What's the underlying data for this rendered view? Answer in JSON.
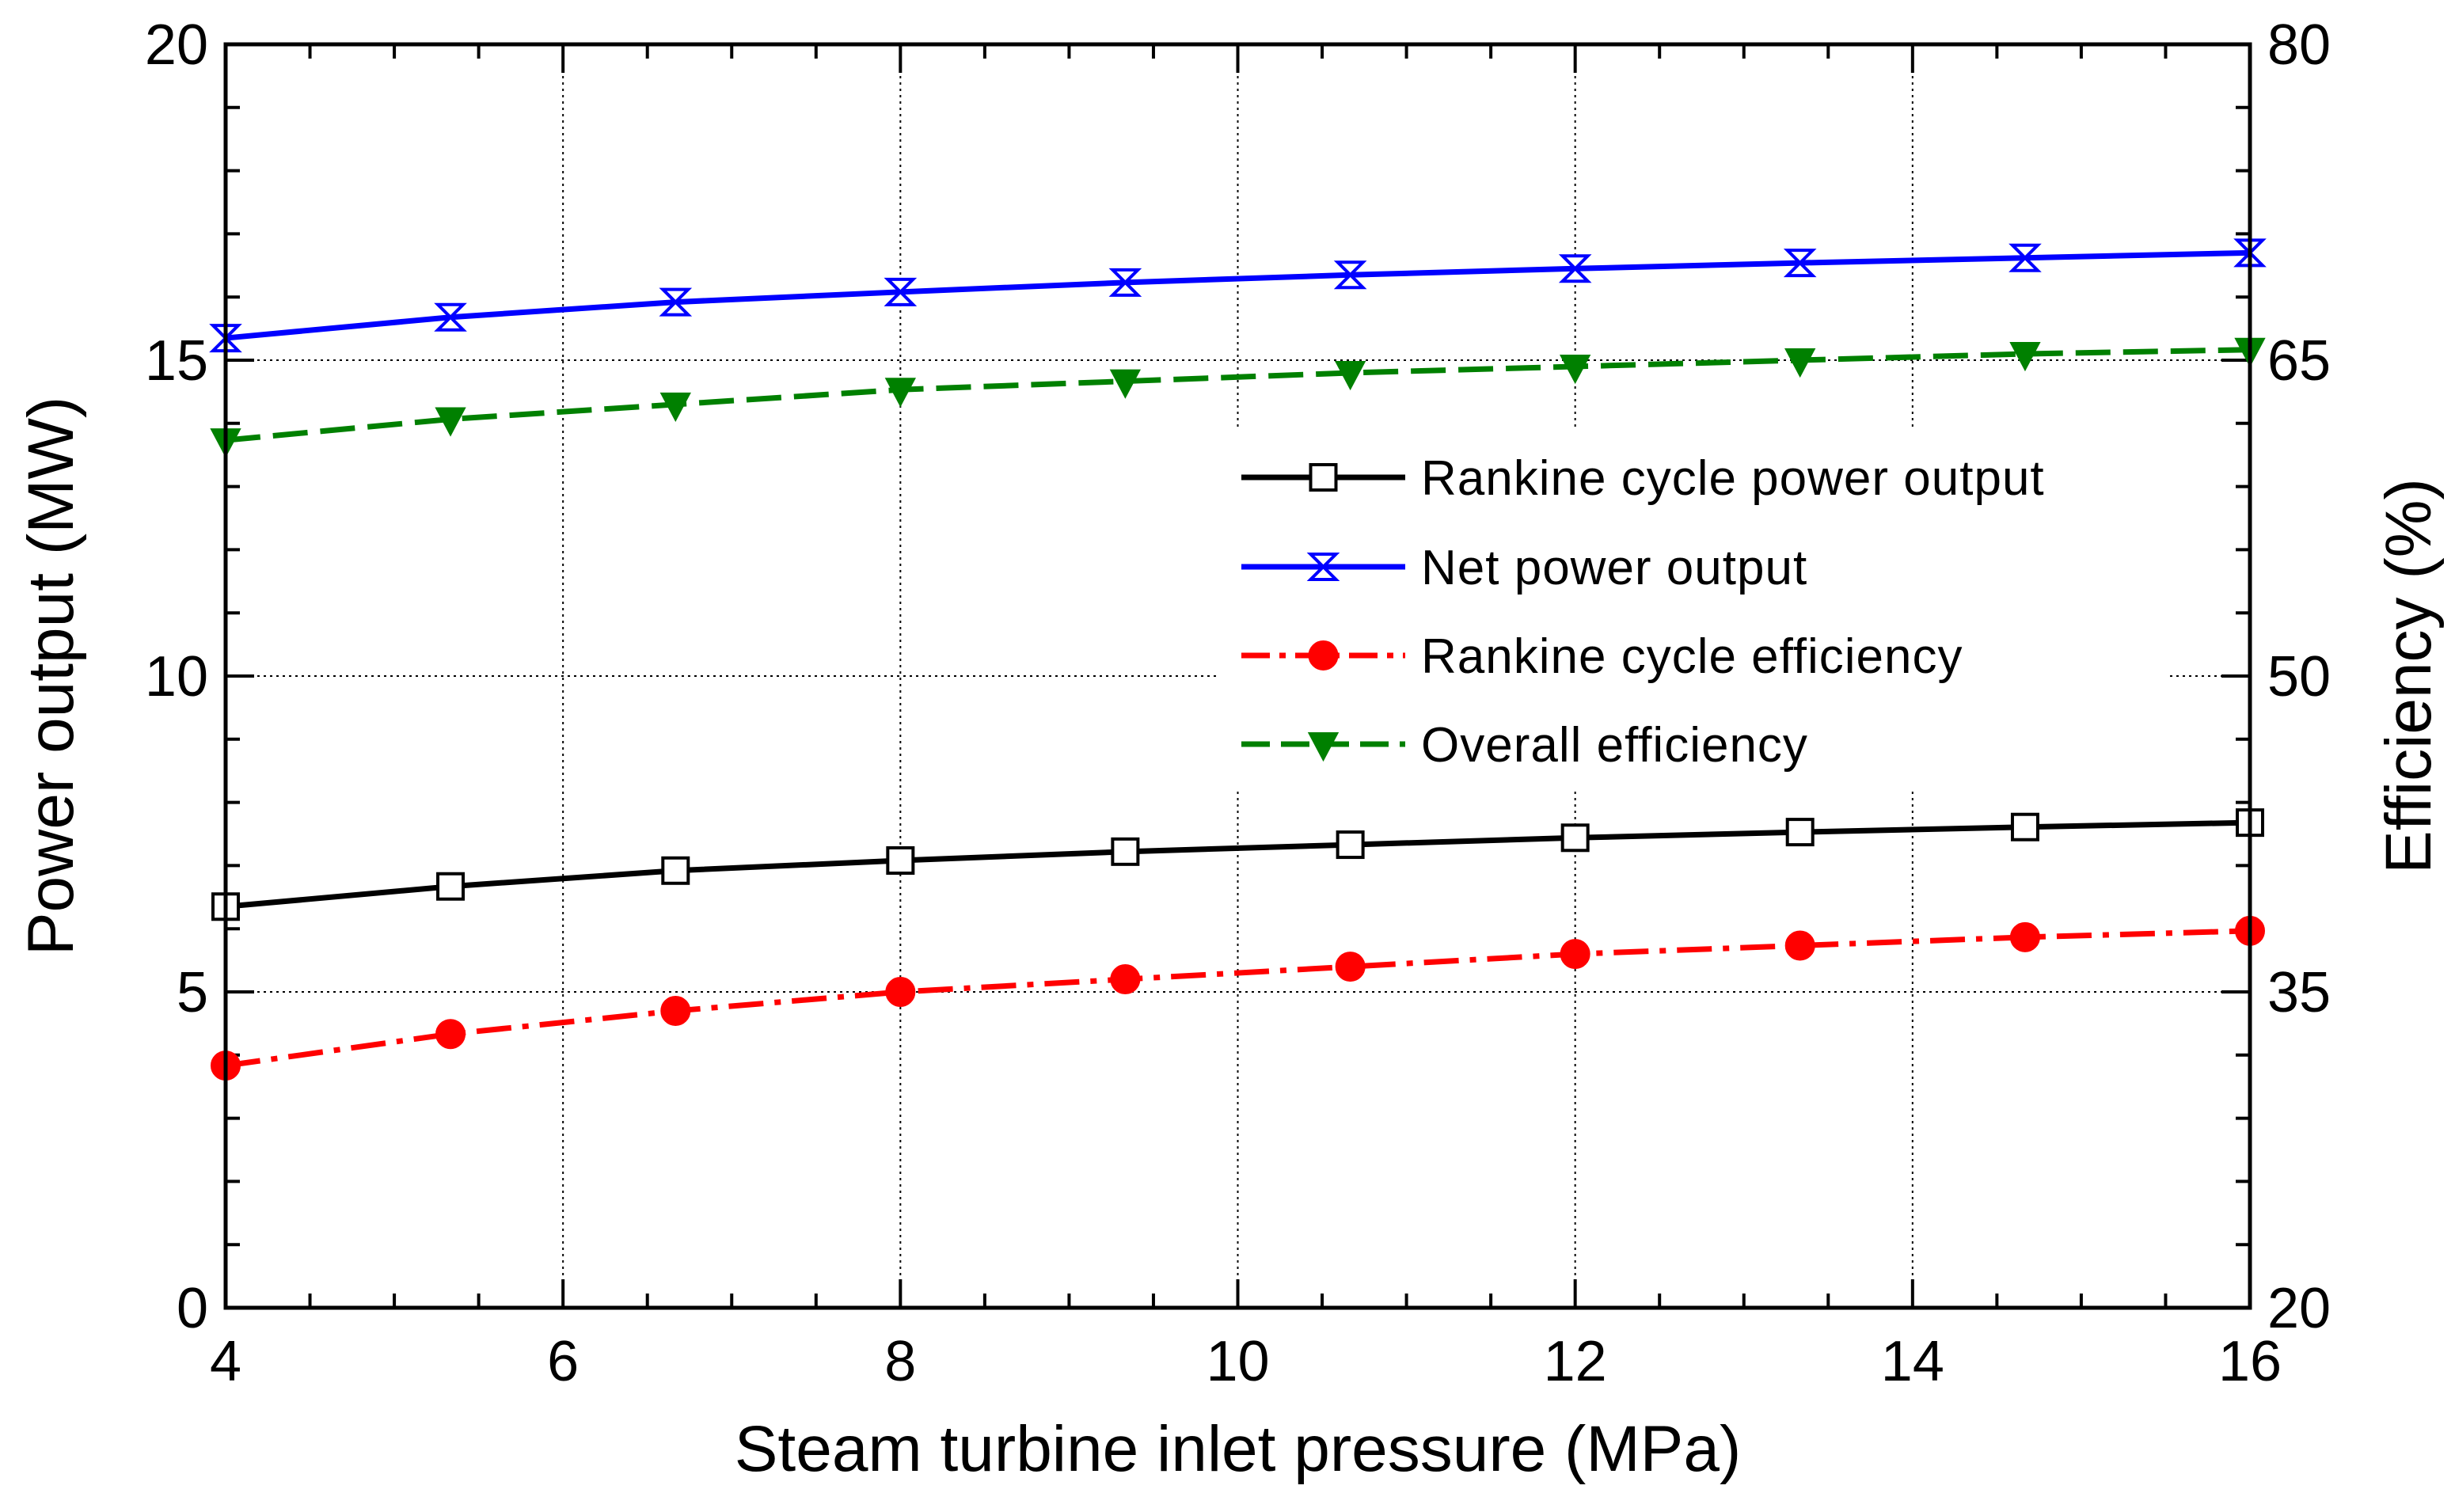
{
  "chart_data": {
    "type": "line",
    "xlabel": "Steam turbine inlet pressure (MPa)",
    "ylabel_left": "Power output (MW)",
    "ylabel_right": "Efficiency (%)",
    "xlim": [
      4,
      16
    ],
    "ylim_left": [
      0,
      20
    ],
    "ylim_right": [
      20,
      80
    ],
    "x_ticks": [
      4,
      6,
      8,
      10,
      12,
      14,
      16
    ],
    "x_tick_labels": [
      "4",
      "6",
      "8",
      "10",
      "12",
      "14",
      "16"
    ],
    "y_left_ticks": [
      0,
      5,
      10,
      15,
      20
    ],
    "y_left_tick_labels": [
      "0",
      "5",
      "10",
      "15",
      "20"
    ],
    "y_right_ticks": [
      20,
      35,
      50,
      65,
      80
    ],
    "y_right_tick_labels": [
      "20",
      "35",
      "50",
      "65",
      "80"
    ],
    "grid": "dotted",
    "legend_position": "middle-right",
    "x": [
      4,
      5.333,
      6.667,
      8,
      9.333,
      10.667,
      12,
      13.333,
      14.667,
      16
    ],
    "series": [
      {
        "name": "Rankine cycle power output",
        "axis": "left",
        "color": "#000000",
        "line_style": "solid",
        "marker": "open-square",
        "values": [
          6.35,
          6.67,
          6.92,
          7.08,
          7.22,
          7.33,
          7.44,
          7.53,
          7.61,
          7.68
        ]
      },
      {
        "name": "Net power output",
        "axis": "left",
        "color": "#0000ff",
        "line_style": "solid",
        "marker": "hourglass",
        "values": [
          15.35,
          15.68,
          15.92,
          16.08,
          16.23,
          16.35,
          16.45,
          16.54,
          16.62,
          16.7
        ]
      },
      {
        "name": "Rankine cycle efficiency",
        "axis": "right",
        "color": "#ff0000",
        "line_style": "dash-dot",
        "marker": "filled-circle",
        "values": [
          31.5,
          33.0,
          34.1,
          35.0,
          35.6,
          36.2,
          36.8,
          37.2,
          37.6,
          37.9
        ]
      },
      {
        "name": "Overall efficiency",
        "axis": "right",
        "color": "#008000",
        "line_style": "dashed",
        "marker": "filled-down-triangle",
        "values": [
          61.2,
          62.2,
          62.9,
          63.6,
          64.0,
          64.4,
          64.7,
          65.0,
          65.3,
          65.5
        ]
      }
    ]
  }
}
